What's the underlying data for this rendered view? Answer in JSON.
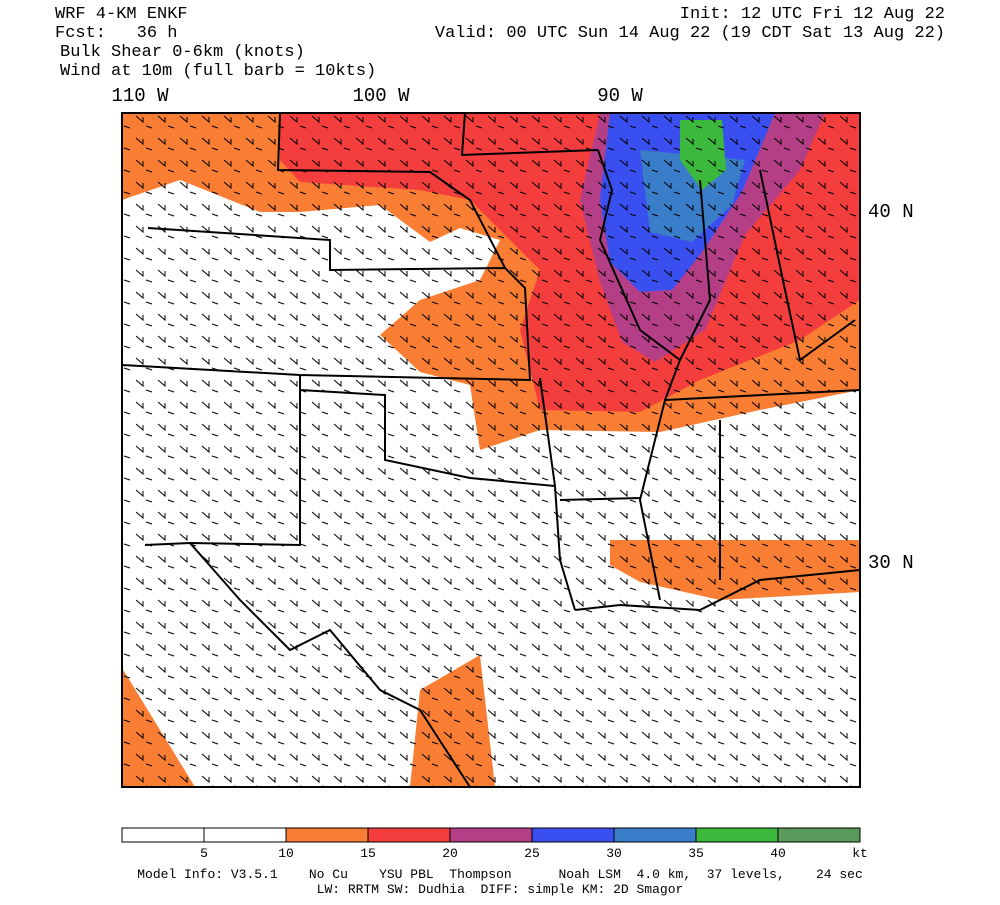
{
  "header": {
    "model": "WRF 4-KM ENKF",
    "forecast": "Fcst:   36 h",
    "field": "Bulk Shear 0-6km (knots)",
    "wind": "Wind at 10m (full barb = 10kts)",
    "init": "Init: 12 UTC Fri 12 Aug 22",
    "valid": "Valid: 00 UTC Sun 14 Aug 22 (19 CDT Sat 13 Aug 22)"
  },
  "map": {
    "lon_labels": [
      "110 W",
      "100 W",
      "90 W"
    ],
    "lat_labels": [
      "40 N",
      "30 N"
    ]
  },
  "colorbar": {
    "colors": [
      "#ffffff",
      "#ffffff",
      "#f97d33",
      "#f43d3d",
      "#b43f86",
      "#3a4ff0",
      "#3a7dc8",
      "#3cb93c",
      "#5a9a5a"
    ],
    "ticks": [
      5,
      10,
      15,
      20,
      25,
      30,
      35,
      40
    ],
    "unit": "kt"
  },
  "footer": {
    "line1": "Model Info: V3.5.1    No Cu    YSU PBL  Thompson      Noah LSM  4.0 km,  37 levels,    24 sec",
    "line2": "LW: RRTM SW: Dudhia  DIFF: simple KM: 2D Smagor"
  }
}
